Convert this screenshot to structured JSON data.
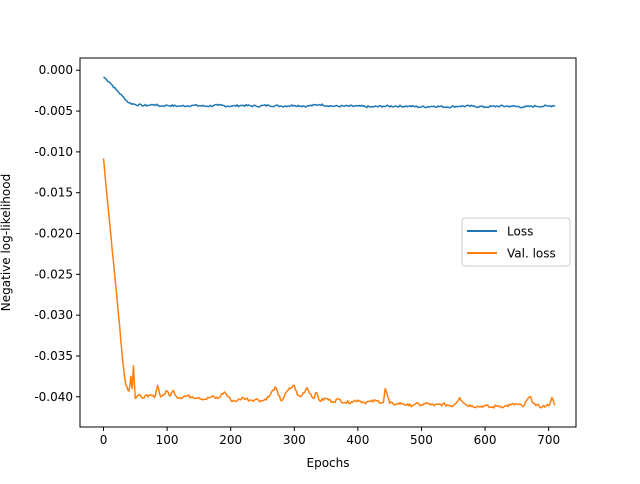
{
  "chart_data": {
    "type": "line",
    "title": "",
    "xlabel": "Epochs",
    "ylabel": "Negative log-likelihood",
    "xlim": [
      -37,
      743
    ],
    "ylim": [
      -0.0437,
      0.0015
    ],
    "xticks": [
      0,
      100,
      200,
      300,
      400,
      500,
      600,
      700
    ],
    "yticks": [
      0.0,
      -0.005,
      -0.01,
      -0.015,
      -0.02,
      -0.025,
      -0.03,
      -0.035,
      -0.04
    ],
    "xtick_labels": [
      "0",
      "100",
      "200",
      "300",
      "400",
      "500",
      "600",
      "700"
    ],
    "ytick_labels": [
      "0.000",
      "-0.005",
      "-0.010",
      "-0.015",
      "-0.020",
      "-0.025",
      "-0.030",
      "-0.035",
      "-0.040"
    ],
    "grid": false,
    "legend_position": "center-right",
    "colors": {
      "Loss": "#1f77b4",
      "Val. loss": "#ff7f0e"
    },
    "series": [
      {
        "name": "Loss",
        "x": [
          0,
          10,
          20,
          30,
          40,
          50,
          60,
          70,
          80,
          90,
          100,
          120,
          140,
          160,
          180,
          200,
          220,
          240,
          260,
          280,
          300,
          320,
          340,
          360,
          380,
          400,
          420,
          440,
          460,
          480,
          500,
          520,
          540,
          560,
          580,
          600,
          620,
          640,
          660,
          680,
          700,
          710
        ],
        "y": [
          -0.0008,
          -0.0015,
          -0.0024,
          -0.0032,
          -0.004,
          -0.0042,
          -0.0043,
          -0.0043,
          -0.0042,
          -0.0044,
          -0.0043,
          -0.0044,
          -0.0043,
          -0.0044,
          -0.0043,
          -0.0044,
          -0.0043,
          -0.0044,
          -0.0043,
          -0.0044,
          -0.0043,
          -0.0044,
          -0.0042,
          -0.0044,
          -0.0044,
          -0.0044,
          -0.0045,
          -0.0044,
          -0.0044,
          -0.0044,
          -0.0045,
          -0.0044,
          -0.0045,
          -0.0044,
          -0.0044,
          -0.0045,
          -0.0044,
          -0.0044,
          -0.0045,
          -0.0044,
          -0.0044,
          -0.0043
        ]
      },
      {
        "name": "Val. loss",
        "x": [
          0,
          5,
          10,
          15,
          20,
          25,
          30,
          35,
          40,
          43,
          45,
          47,
          50,
          55,
          60,
          65,
          70,
          75,
          80,
          85,
          90,
          95,
          100,
          105,
          110,
          115,
          120,
          130,
          140,
          150,
          160,
          170,
          180,
          190,
          200,
          210,
          220,
          230,
          240,
          250,
          260,
          270,
          275,
          280,
          290,
          300,
          305,
          310,
          320,
          330,
          335,
          340,
          350,
          360,
          370,
          380,
          390,
          400,
          410,
          420,
          430,
          440,
          443,
          450,
          460,
          470,
          480,
          490,
          500,
          510,
          520,
          530,
          540,
          550,
          560,
          570,
          580,
          590,
          600,
          610,
          620,
          630,
          640,
          650,
          660,
          670,
          680,
          690,
          700,
          705,
          710
        ],
        "y": [
          -0.0108,
          -0.015,
          -0.019,
          -0.023,
          -0.027,
          -0.031,
          -0.0355,
          -0.0385,
          -0.0393,
          -0.0375,
          -0.039,
          -0.0362,
          -0.0402,
          -0.0398,
          -0.0401,
          -0.0399,
          -0.04,
          -0.0398,
          -0.0401,
          -0.0386,
          -0.04,
          -0.0397,
          -0.0393,
          -0.0399,
          -0.0392,
          -0.04,
          -0.0401,
          -0.0399,
          -0.04,
          -0.0401,
          -0.0403,
          -0.04,
          -0.0402,
          -0.0394,
          -0.0404,
          -0.0405,
          -0.0401,
          -0.0404,
          -0.0403,
          -0.0405,
          -0.04,
          -0.0388,
          -0.0398,
          -0.0405,
          -0.0392,
          -0.0386,
          -0.0398,
          -0.04,
          -0.0389,
          -0.0402,
          -0.0395,
          -0.0405,
          -0.0402,
          -0.0406,
          -0.0403,
          -0.0407,
          -0.0406,
          -0.0404,
          -0.0407,
          -0.0406,
          -0.0405,
          -0.0407,
          -0.039,
          -0.0408,
          -0.0409,
          -0.0408,
          -0.0411,
          -0.0409,
          -0.041,
          -0.0408,
          -0.0411,
          -0.0409,
          -0.041,
          -0.0411,
          -0.0401,
          -0.041,
          -0.0411,
          -0.0412,
          -0.0411,
          -0.0413,
          -0.0411,
          -0.0412,
          -0.041,
          -0.0409,
          -0.0412,
          -0.04,
          -0.0411,
          -0.0412,
          -0.0411,
          -0.0401,
          -0.041
        ]
      }
    ]
  }
}
